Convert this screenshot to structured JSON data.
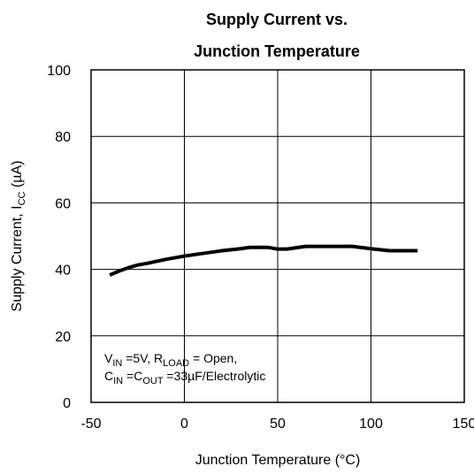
{
  "chart_data": {
    "type": "line",
    "title": [
      "Supply Current vs.",
      "Junction Temperature"
    ],
    "xlabel": "Junction Temperature (°C)",
    "ylabel": [
      {
        "t": "Supply Current, I"
      },
      {
        "sub": "CC"
      },
      {
        "t": " (µA)"
      }
    ],
    "annotation": [
      [
        {
          "t": "V"
        },
        {
          "sub": "IN"
        },
        {
          "t": " =5V, R"
        },
        {
          "sub": "LOAD"
        },
        {
          "t": " = Open,"
        }
      ],
      [
        {
          "t": "C"
        },
        {
          "sub": "IN"
        },
        {
          "t": " =C"
        },
        {
          "sub": "OUT"
        },
        {
          "t": " =33µF/Electrolytic"
        }
      ]
    ],
    "x": [
      -40,
      -35,
      -30,
      -25,
      -20,
      -10,
      0,
      10,
      20,
      30,
      35,
      45,
      50,
      55,
      65,
      90,
      100,
      110,
      125
    ],
    "series": [
      {
        "name": "Supply Current",
        "color": "#000000",
        "values": [
          38.3,
          39.5,
          40.5,
          41.3,
          41.8,
          43,
          44,
          44.8,
          45.6,
          46.2,
          46.6,
          46.6,
          46.1,
          46.1,
          46.9,
          46.9,
          46.2,
          45.6,
          45.6
        ]
      }
    ],
    "xlim": [
      -50,
      150
    ],
    "xticks": [
      -50,
      0,
      50,
      100,
      150
    ],
    "ylim": [
      0,
      100
    ],
    "yticks": [
      0,
      20,
      40,
      60,
      80,
      100
    ],
    "grid": true
  }
}
